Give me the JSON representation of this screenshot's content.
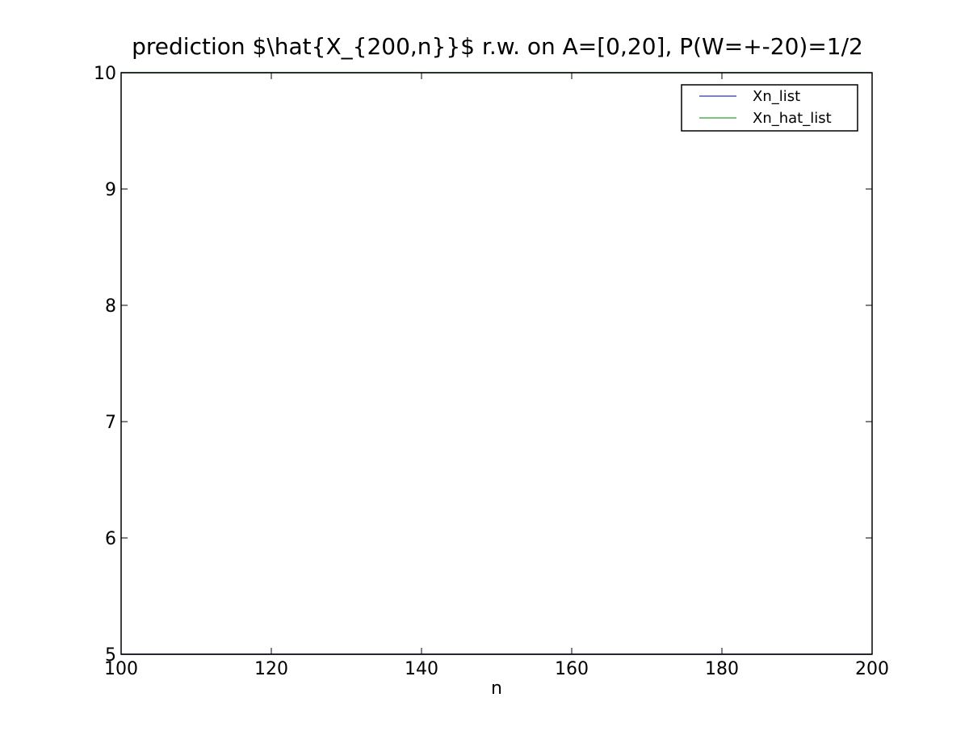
{
  "chart_data": {
    "type": "line",
    "title": "prediction $\\hat{X_{200,n}}$ r.w. on A=[0,20], P(W=+-20)=1/2",
    "xlabel": "n",
    "ylabel": "",
    "xlim": [
      100,
      200
    ],
    "ylim": [
      5,
      10
    ],
    "xticks": [
      100,
      120,
      140,
      160,
      180,
      200
    ],
    "yticks": [
      5,
      6,
      7,
      8,
      9,
      10
    ],
    "xtick_labels": [
      "100",
      "120",
      "140",
      "160",
      "180",
      "200"
    ],
    "ytick_labels": [
      "5",
      "6",
      "7",
      "8",
      "9",
      "10"
    ],
    "grid": false,
    "legend_position": "top-right",
    "series": [
      {
        "name": "Xn_list",
        "color": "#3333aa",
        "x": [
          100,
          200
        ],
        "y": [
          5,
          5
        ]
      },
      {
        "name": "Xn_hat_list",
        "color": "#2ca02c",
        "x": [
          100,
          200
        ],
        "y": [
          10,
          10
        ]
      }
    ]
  }
}
